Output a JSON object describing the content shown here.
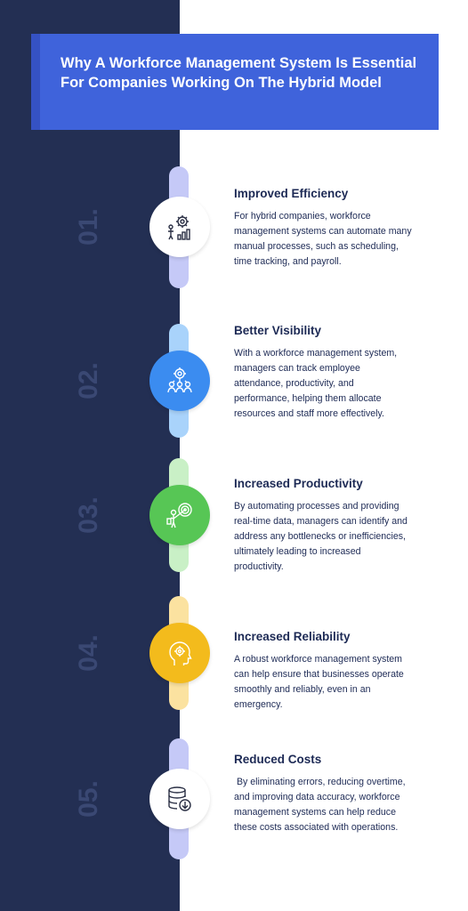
{
  "header": {
    "title": "Why A Workforce Management System Is Essential For Companies Working On The Hybrid Model"
  },
  "steps": [
    {
      "number": "01.",
      "title": "Improved Efficiency",
      "description": "For hybrid companies, workforce management systems can automate many manual processes, such as scheduling, time tracking, and payroll.",
      "icon": "efficiency-gear-chart-icon",
      "accent_color": "#c5c9f7",
      "circle_color": "#ffffff"
    },
    {
      "number": "02.",
      "title": "Better Visibility",
      "description": "With a workforce management system, managers can track employee attendance, productivity, and performance, helping them allocate resources and staff more effectively.",
      "icon": "team-gear-icon",
      "accent_color": "#a9d3fb",
      "circle_color": "#3b8cf0"
    },
    {
      "number": "03.",
      "title": "Increased Productivity",
      "description": "By automating processes and providing real-time data, managers can identify and address any bottlenecks or inefficiencies, ultimately leading to increased productivity.",
      "icon": "target-person-icon",
      "accent_color": "#c9f0c6",
      "circle_color": "#57c655"
    },
    {
      "number": "04.",
      "title": "Increased Reliability",
      "description": "A robust workforce management system can help ensure that businesses operate smoothly and reliably, even in an emergency.",
      "icon": "head-gear-icon",
      "accent_color": "#fbe2a0",
      "circle_color": "#f3bb1c"
    },
    {
      "number": "05.",
      "title": "Reduced Costs",
      "description": " By eliminating errors, reducing overtime, and improving data accuracy, workforce management systems can help reduce these costs associated with operations.",
      "icon": "database-download-icon",
      "accent_color": "#c5c9f7",
      "circle_color": "#ffffff"
    }
  ]
}
